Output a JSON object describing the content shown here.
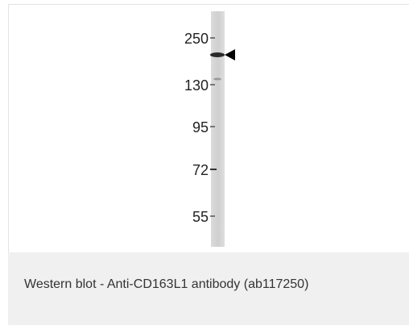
{
  "figure": {
    "markers": [
      "250",
      "130",
      "95",
      "72",
      "55"
    ]
  },
  "caption": "Western blot - Anti-CD163L1 antibody (ab117250)"
}
